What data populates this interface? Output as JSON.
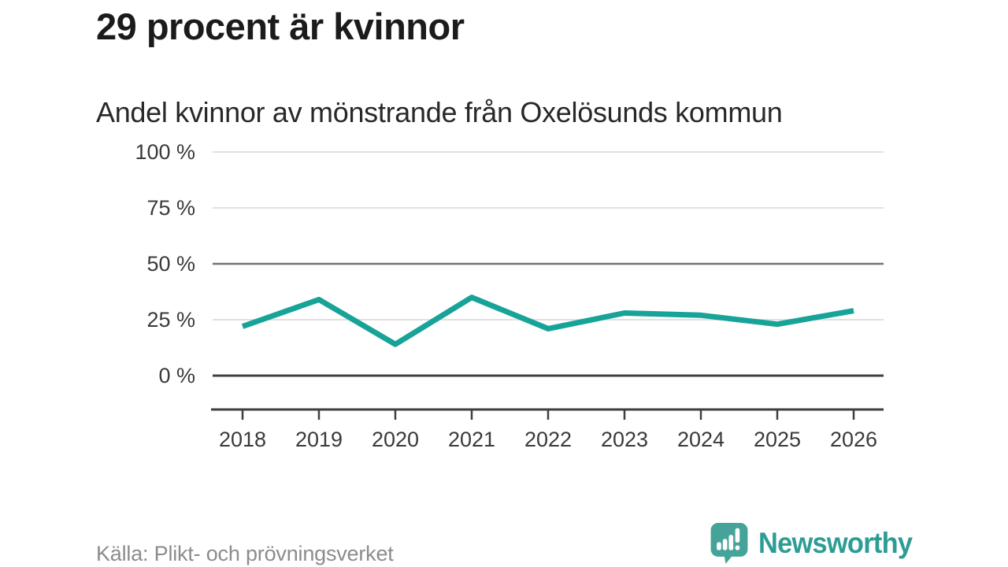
{
  "header": {
    "title": "29 procent är kvinnor",
    "subtitle": "Andel kvinnor av mönstrande från Oxelösunds kommun"
  },
  "chart_data": {
    "type": "line",
    "title": "29 procent är kvinnor",
    "subtitle": "Andel kvinnor av mönstrande från Oxelösunds kommun",
    "categories": [
      "2018",
      "2019",
      "2020",
      "2021",
      "2022",
      "2023",
      "2024",
      "2025",
      "2026"
    ],
    "series": [
      {
        "name": "Andel kvinnor av mönstrande",
        "values": [
          22,
          34,
          14,
          35,
          21,
          28,
          27,
          23,
          29
        ]
      }
    ],
    "xlabel": "",
    "ylabel": "",
    "ylim": [
      0,
      100
    ],
    "yticks": [
      0,
      25,
      50,
      75,
      100
    ],
    "ytick_labels": [
      "0 %",
      "25 %",
      "50 %",
      "75 %",
      "100 %"
    ],
    "grid": "horizontal",
    "legend": "none",
    "source": "Källa: Plikt- och prövningsverket"
  },
  "footer": {
    "source": "Källa: Plikt- och prövningsverket",
    "brand": "Newsworthy"
  },
  "colors": {
    "line": "#17a398",
    "grid_light": "#e0e0e0",
    "grid_mid": "#72727a",
    "grid_dark": "#3f3f3f",
    "axis": "#3f3f3f",
    "tick_text": "#3a3a3a",
    "title_text": "#1b1b1b",
    "source_text": "#8c8c8c",
    "brand_teal": "#2d9d94",
    "logo_teal": "#46a39a",
    "logo_glyph": "#ffffff"
  }
}
